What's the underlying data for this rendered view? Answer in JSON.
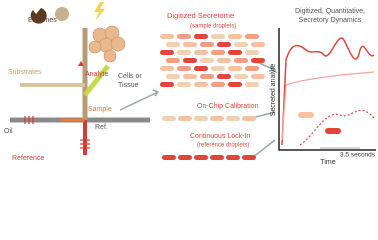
{
  "labels": {
    "enzymes": "Enzymes",
    "substrates": "Substrates",
    "analyte": "Analyte",
    "cells": [
      "Cells or",
      "Tissue"
    ],
    "sample": "Sample",
    "ref": "Ref.",
    "oil": "Oil",
    "reference": "Reference"
  },
  "middle": {
    "secretome": "Digitized Secretome",
    "secretome_sub": "(sample droplets)",
    "calibration": "On-Chip Calibration",
    "lockin": "Continuous Lock-In",
    "lockin_sub": "(reference droplets)"
  },
  "plot": {
    "title_lines": [
      "Digitized, Quantitative,",
      "Secretory Dynamics"
    ],
    "y_label": "Secreted analyte",
    "x_label": "Time",
    "interval": "3.5 seconds"
  }
}
